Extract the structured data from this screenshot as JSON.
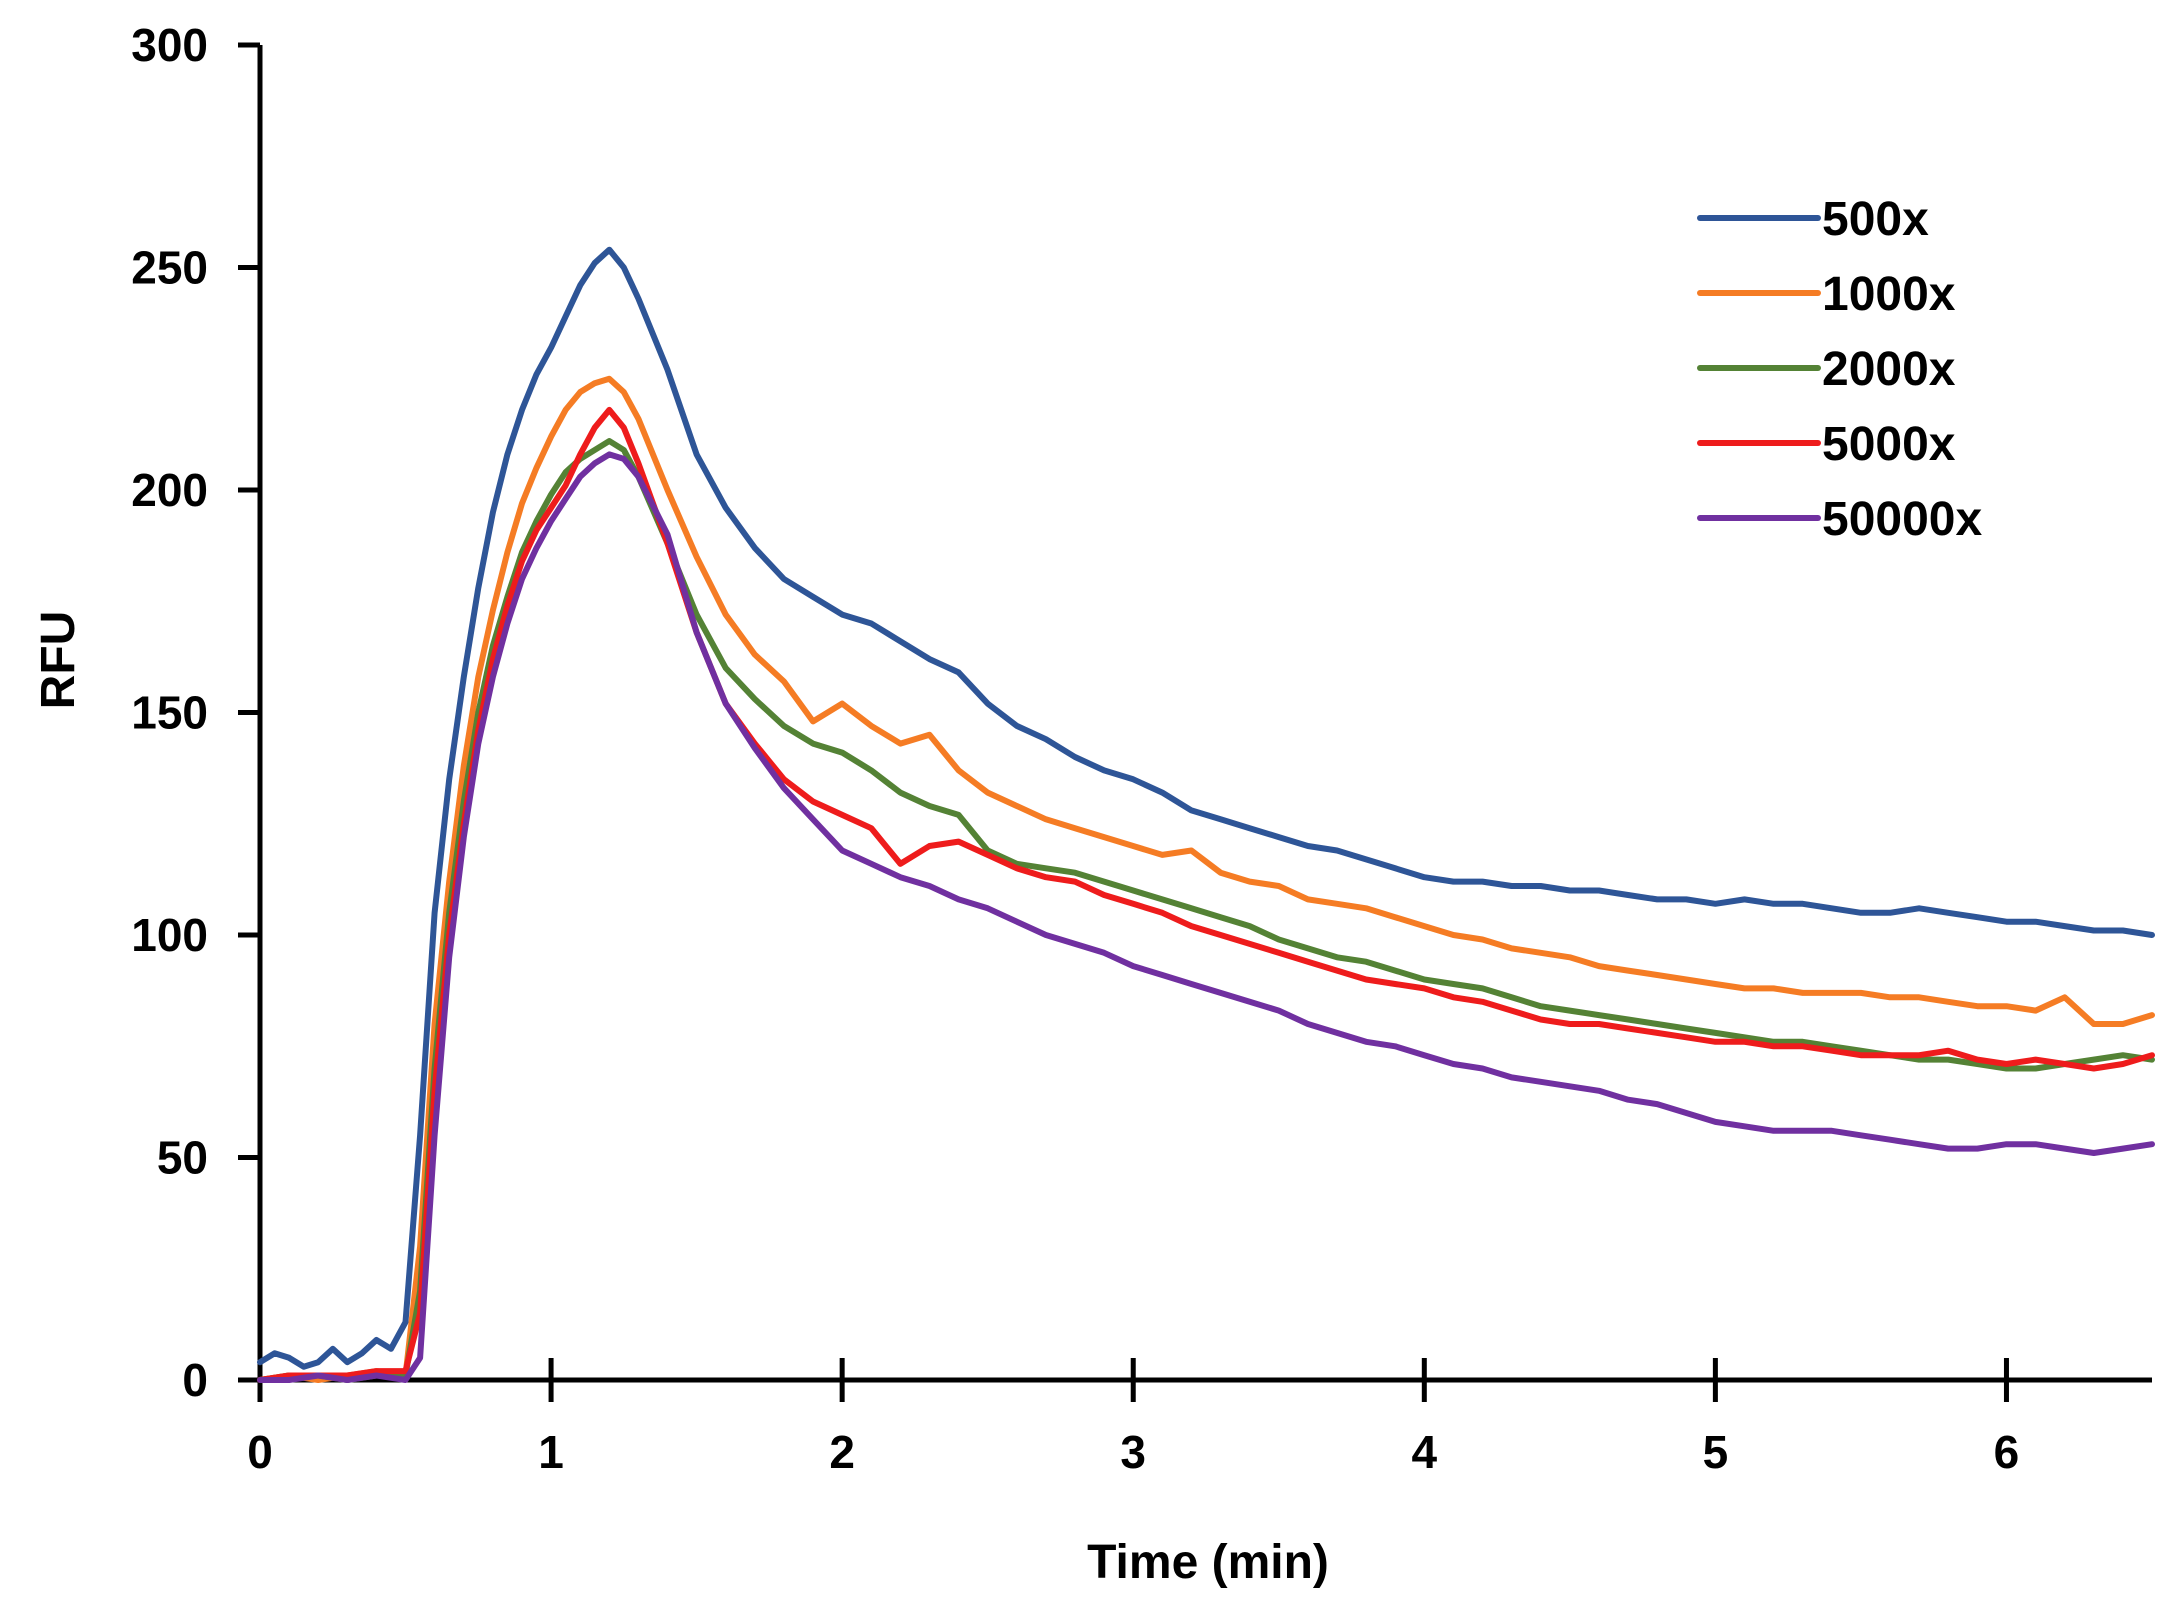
{
  "chart_data": {
    "type": "line",
    "title": "",
    "xlabel": "Time (min)",
    "ylabel": "RFU",
    "xlim": [
      0,
      6.5
    ],
    "ylim": [
      0,
      300
    ],
    "xticks": [
      0,
      1,
      2,
      3,
      4,
      5,
      6
    ],
    "yticks": [
      0,
      50,
      100,
      150,
      200,
      250,
      300
    ],
    "xtick_labels": [
      "0",
      "1",
      "2",
      "3",
      "4",
      "5",
      "6"
    ],
    "ytick_labels": [
      "0",
      "50",
      "100",
      "150",
      "200",
      "250",
      "300"
    ],
    "grid": false,
    "legend_position": "top-right",
    "series": [
      {
        "name": "500x",
        "color": "#2E5597",
        "x": [
          0,
          0.05,
          0.1,
          0.15,
          0.2,
          0.25,
          0.3,
          0.35,
          0.4,
          0.45,
          0.5,
          0.55,
          0.6,
          0.65,
          0.7,
          0.75,
          0.8,
          0.85,
          0.9,
          0.95,
          1.0,
          1.05,
          1.1,
          1.15,
          1.2,
          1.25,
          1.3,
          1.4,
          1.5,
          1.6,
          1.7,
          1.8,
          1.9,
          2.0,
          2.1,
          2.2,
          2.3,
          2.4,
          2.5,
          2.6,
          2.7,
          2.8,
          2.9,
          3.0,
          3.1,
          3.2,
          3.3,
          3.4,
          3.5,
          3.6,
          3.7,
          3.8,
          3.9,
          4.0,
          4.1,
          4.2,
          4.3,
          4.4,
          4.5,
          4.6,
          4.7,
          4.8,
          4.9,
          5.0,
          5.1,
          5.2,
          5.3,
          5.4,
          5.5,
          5.6,
          5.7,
          5.8,
          5.9,
          6.0,
          6.1,
          6.2,
          6.3,
          6.4,
          6.5
        ],
        "values": [
          4,
          6,
          5,
          3,
          4,
          7,
          4,
          6,
          9,
          7,
          13,
          55,
          105,
          135,
          158,
          178,
          195,
          208,
          218,
          226,
          232,
          239,
          246,
          251,
          254,
          250,
          243,
          227,
          208,
          196,
          187,
          180,
          176,
          172,
          170,
          166,
          162,
          159,
          152,
          147,
          144,
          140,
          137,
          135,
          132,
          128,
          126,
          124,
          122,
          120,
          119,
          117,
          115,
          113,
          112,
          112,
          111,
          111,
          110,
          110,
          109,
          108,
          108,
          107,
          108,
          107,
          107,
          106,
          105,
          105,
          106,
          105,
          104,
          103,
          103,
          102,
          101,
          101,
          100
        ]
      },
      {
        "name": "1000x",
        "color": "#F57C24",
        "x": [
          0,
          0.1,
          0.2,
          0.3,
          0.4,
          0.5,
          0.55,
          0.6,
          0.65,
          0.7,
          0.75,
          0.8,
          0.85,
          0.9,
          0.95,
          1.0,
          1.05,
          1.1,
          1.15,
          1.2,
          1.25,
          1.3,
          1.4,
          1.5,
          1.6,
          1.7,
          1.8,
          1.9,
          2.0,
          2.1,
          2.2,
          2.3,
          2.4,
          2.5,
          2.6,
          2.7,
          2.8,
          2.9,
          3.0,
          3.1,
          3.2,
          3.3,
          3.4,
          3.5,
          3.6,
          3.7,
          3.8,
          3.9,
          4.0,
          4.1,
          4.2,
          4.3,
          4.4,
          4.5,
          4.6,
          4.7,
          4.8,
          4.9,
          5.0,
          5.1,
          5.2,
          5.3,
          5.4,
          5.5,
          5.6,
          5.7,
          5.8,
          5.9,
          6.0,
          6.1,
          6.2,
          6.3,
          6.4,
          6.5
        ],
        "values": [
          0,
          1,
          0,
          1,
          2,
          1,
          30,
          80,
          112,
          138,
          158,
          173,
          186,
          197,
          205,
          212,
          218,
          222,
          224,
          225,
          222,
          216,
          200,
          185,
          172,
          163,
          157,
          148,
          152,
          147,
          143,
          145,
          137,
          132,
          129,
          126,
          124,
          122,
          120,
          118,
          119,
          114,
          112,
          111,
          108,
          107,
          106,
          104,
          102,
          100,
          99,
          97,
          96,
          95,
          93,
          92,
          91,
          90,
          89,
          88,
          88,
          87,
          87,
          87,
          86,
          86,
          85,
          84,
          84,
          83,
          86,
          80,
          80,
          82
        ]
      },
      {
        "name": "2000x",
        "color": "#548235",
        "x": [
          0,
          0.1,
          0.2,
          0.3,
          0.4,
          0.5,
          0.55,
          0.6,
          0.65,
          0.7,
          0.75,
          0.8,
          0.85,
          0.9,
          0.95,
          1.0,
          1.05,
          1.1,
          1.15,
          1.2,
          1.25,
          1.3,
          1.4,
          1.5,
          1.6,
          1.7,
          1.8,
          1.9,
          2.0,
          2.1,
          2.2,
          2.3,
          2.4,
          2.5,
          2.6,
          2.7,
          2.8,
          2.9,
          3.0,
          3.1,
          3.2,
          3.3,
          3.4,
          3.5,
          3.6,
          3.7,
          3.8,
          3.9,
          4.0,
          4.1,
          4.2,
          4.3,
          4.4,
          4.5,
          4.6,
          4.7,
          4.8,
          4.9,
          5.0,
          5.1,
          5.2,
          5.3,
          5.4,
          5.5,
          5.6,
          5.7,
          5.8,
          5.9,
          6.0,
          6.1,
          6.2,
          6.3,
          6.4,
          6.5
        ],
        "values": [
          0,
          1,
          1,
          0,
          1,
          1,
          20,
          70,
          105,
          130,
          150,
          165,
          176,
          186,
          193,
          199,
          204,
          207,
          209,
          211,
          209,
          203,
          188,
          172,
          160,
          153,
          147,
          143,
          141,
          137,
          132,
          129,
          127,
          119,
          116,
          115,
          114,
          112,
          110,
          108,
          106,
          104,
          102,
          99,
          97,
          95,
          94,
          92,
          90,
          89,
          88,
          86,
          84,
          83,
          82,
          81,
          80,
          79,
          78,
          77,
          76,
          76,
          75,
          74,
          73,
          72,
          72,
          71,
          70,
          70,
          71,
          72,
          73,
          72
        ]
      },
      {
        "name": "5000x",
        "color": "#EE1C1C",
        "x": [
          0,
          0.1,
          0.2,
          0.3,
          0.4,
          0.5,
          0.55,
          0.6,
          0.65,
          0.7,
          0.75,
          0.8,
          0.85,
          0.9,
          0.95,
          1.0,
          1.05,
          1.1,
          1.15,
          1.2,
          1.25,
          1.3,
          1.4,
          1.5,
          1.6,
          1.7,
          1.8,
          1.9,
          2.0,
          2.1,
          2.2,
          2.3,
          2.4,
          2.5,
          2.6,
          2.7,
          2.8,
          2.9,
          3.0,
          3.1,
          3.2,
          3.3,
          3.4,
          3.5,
          3.6,
          3.7,
          3.8,
          3.9,
          4.0,
          4.1,
          4.2,
          4.3,
          4.4,
          4.5,
          4.6,
          4.7,
          4.8,
          4.9,
          5.0,
          5.1,
          5.2,
          5.3,
          5.4,
          5.5,
          5.6,
          5.7,
          5.8,
          5.9,
          6.0,
          6.1,
          6.2,
          6.3,
          6.4,
          6.5
        ],
        "values": [
          0,
          1,
          1,
          1,
          2,
          2,
          15,
          65,
          100,
          125,
          146,
          162,
          174,
          184,
          191,
          196,
          201,
          208,
          214,
          218,
          214,
          206,
          188,
          168,
          152,
          143,
          135,
          130,
          127,
          124,
          116,
          120,
          121,
          118,
          115,
          113,
          112,
          109,
          107,
          105,
          102,
          100,
          98,
          96,
          94,
          92,
          90,
          89,
          88,
          86,
          85,
          83,
          81,
          80,
          80,
          79,
          78,
          77,
          76,
          76,
          75,
          75,
          74,
          73,
          73,
          73,
          74,
          72,
          71,
          72,
          71,
          70,
          71,
          73
        ]
      },
      {
        "name": "50000x",
        "color": "#7030A0",
        "x": [
          0,
          0.1,
          0.2,
          0.3,
          0.4,
          0.5,
          0.55,
          0.6,
          0.65,
          0.7,
          0.75,
          0.8,
          0.85,
          0.9,
          0.95,
          1.0,
          1.05,
          1.1,
          1.15,
          1.2,
          1.25,
          1.3,
          1.4,
          1.5,
          1.6,
          1.7,
          1.8,
          1.9,
          2.0,
          2.1,
          2.2,
          2.3,
          2.4,
          2.5,
          2.6,
          2.7,
          2.8,
          2.9,
          3.0,
          3.1,
          3.2,
          3.3,
          3.4,
          3.5,
          3.6,
          3.7,
          3.8,
          3.9,
          4.0,
          4.1,
          4.2,
          4.3,
          4.4,
          4.5,
          4.6,
          4.7,
          4.8,
          4.9,
          5.0,
          5.1,
          5.2,
          5.3,
          5.4,
          5.5,
          5.6,
          5.7,
          5.8,
          5.9,
          6.0,
          6.1,
          6.2,
          6.3,
          6.4,
          6.5
        ],
        "values": [
          0,
          0,
          1,
          0,
          1,
          0,
          5,
          55,
          95,
          122,
          143,
          158,
          170,
          180,
          187,
          193,
          198,
          203,
          206,
          208,
          207,
          203,
          190,
          168,
          152,
          142,
          133,
          126,
          119,
          116,
          113,
          111,
          108,
          106,
          103,
          100,
          98,
          96,
          93,
          91,
          89,
          87,
          85,
          83,
          80,
          78,
          76,
          75,
          73,
          71,
          70,
          68,
          67,
          66,
          65,
          63,
          62,
          60,
          58,
          57,
          56,
          56,
          56,
          55,
          54,
          53,
          52,
          52,
          53,
          53,
          52,
          51,
          52,
          53
        ]
      }
    ]
  }
}
